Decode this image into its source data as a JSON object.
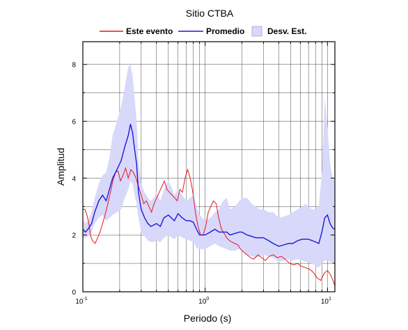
{
  "chart_data": {
    "type": "line",
    "title": "Sitio CTBA",
    "xlabel": "Periodo (s)",
    "ylabel": "Amplitud",
    "xscale": "log",
    "xlim": [
      0.1,
      11.5
    ],
    "ylim": [
      0,
      8.8
    ],
    "grid": true,
    "legend_position": "top",
    "x_ticks": [
      {
        "value": 0.1,
        "base": "10",
        "exp": "-1"
      },
      {
        "value": 1,
        "base": "10",
        "exp": "0"
      },
      {
        "value": 10,
        "base": "10",
        "exp": "1"
      }
    ],
    "y_ticks": [
      {
        "value": 0,
        "label": "0"
      },
      {
        "value": 2,
        "label": "2"
      },
      {
        "value": 4,
        "label": "4"
      },
      {
        "value": 6,
        "label": "6"
      },
      {
        "value": 8,
        "label": "8"
      }
    ],
    "legend": {
      "event_label": "Este evento",
      "mean_label": "Promedio",
      "std_label": "Desv. Est."
    },
    "colors": {
      "event": "#e8141c",
      "mean": "#1a1ad6",
      "std_fill": "#d8d8fb",
      "grid": "#444444"
    },
    "series": [
      {
        "name": "Este evento",
        "x": [
          0.1,
          0.104,
          0.108,
          0.112,
          0.116,
          0.12,
          0.126,
          0.132,
          0.138,
          0.145,
          0.152,
          0.16,
          0.168,
          0.176,
          0.185,
          0.194,
          0.203,
          0.213,
          0.224,
          0.235,
          0.247,
          0.259,
          0.272,
          0.285,
          0.3,
          0.315,
          0.33,
          0.347,
          0.364,
          0.382,
          0.401,
          0.421,
          0.442,
          0.464,
          0.487,
          0.511,
          0.537,
          0.564,
          0.592,
          0.621,
          0.652,
          0.685,
          0.719,
          0.755,
          0.793,
          0.832,
          0.874,
          0.917,
          0.963,
          1.01,
          1.06,
          1.11,
          1.17,
          1.23,
          1.29,
          1.36,
          1.43,
          1.5,
          1.58,
          1.66,
          1.75,
          1.85,
          1.95,
          2.06,
          2.2,
          2.35,
          2.5,
          2.7,
          2.9,
          3.1,
          3.35,
          3.6,
          3.9,
          4.2,
          4.5,
          4.9,
          5.3,
          5.7,
          6.1,
          6.6,
          7.1,
          7.6,
          8.2,
          8.8,
          9.4,
          10.0,
          10.6,
          11.2,
          11.5
        ],
        "y": [
          2.9,
          2.9,
          2.7,
          2.4,
          1.95,
          1.8,
          1.7,
          1.9,
          2.1,
          2.4,
          2.7,
          3.1,
          3.5,
          3.9,
          4.2,
          4.25,
          3.9,
          4.1,
          4.35,
          4.0,
          4.3,
          4.2,
          4.0,
          3.7,
          3.4,
          3.1,
          3.2,
          3.0,
          2.8,
          3.1,
          3.3,
          3.5,
          3.7,
          3.9,
          3.6,
          3.5,
          3.4,
          3.3,
          3.2,
          3.6,
          3.5,
          4.0,
          4.3,
          4.0,
          3.5,
          2.8,
          2.3,
          2.0,
          2.0,
          2.3,
          2.8,
          3.0,
          3.2,
          3.1,
          2.6,
          2.2,
          2.05,
          1.9,
          1.8,
          1.75,
          1.7,
          1.65,
          1.5,
          1.4,
          1.3,
          1.2,
          1.15,
          1.3,
          1.2,
          1.1,
          1.25,
          1.3,
          1.2,
          1.25,
          1.15,
          1.0,
          0.95,
          1.0,
          0.9,
          0.85,
          0.8,
          0.7,
          0.5,
          0.4,
          0.65,
          0.75,
          0.6,
          0.35,
          0.2
        ]
      },
      {
        "name": "Promedio",
        "x": [
          0.1,
          0.105,
          0.11,
          0.118,
          0.125,
          0.135,
          0.145,
          0.155,
          0.165,
          0.175,
          0.19,
          0.205,
          0.22,
          0.235,
          0.245,
          0.255,
          0.265,
          0.275,
          0.285,
          0.3,
          0.32,
          0.34,
          0.36,
          0.38,
          0.4,
          0.43,
          0.46,
          0.5,
          0.53,
          0.56,
          0.6,
          0.65,
          0.7,
          0.75,
          0.8,
          0.85,
          0.9,
          0.95,
          1.0,
          1.1,
          1.2,
          1.3,
          1.4,
          1.5,
          1.6,
          1.75,
          1.9,
          2.0,
          2.2,
          2.4,
          2.6,
          2.8,
          3.0,
          3.3,
          3.6,
          4.0,
          4.4,
          4.8,
          5.2,
          5.7,
          6.2,
          6.6,
          7.0,
          7.5,
          8.0,
          8.5,
          9.0,
          9.5,
          10.0,
          10.5,
          11.0,
          11.5
        ],
        "y": [
          2.2,
          2.1,
          2.2,
          2.4,
          2.8,
          3.2,
          3.4,
          3.2,
          3.6,
          4.0,
          4.3,
          4.6,
          5.1,
          5.5,
          5.9,
          5.6,
          5.0,
          4.5,
          3.5,
          2.9,
          2.6,
          2.4,
          2.3,
          2.35,
          2.4,
          2.3,
          2.6,
          2.7,
          2.6,
          2.5,
          2.75,
          2.6,
          2.5,
          2.5,
          2.45,
          2.2,
          2.0,
          2.0,
          2.0,
          2.1,
          2.2,
          2.1,
          2.1,
          2.1,
          2.0,
          2.05,
          2.1,
          2.1,
          2.0,
          1.95,
          1.9,
          1.9,
          1.9,
          1.8,
          1.7,
          1.6,
          1.65,
          1.7,
          1.7,
          1.8,
          1.85,
          1.85,
          1.85,
          1.8,
          1.75,
          1.7,
          2.1,
          2.6,
          2.7,
          2.4,
          2.25,
          2.2
        ]
      }
    ],
    "std_band": {
      "name": "Desv. Est.",
      "x": [
        0.1,
        0.105,
        0.11,
        0.118,
        0.125,
        0.135,
        0.145,
        0.155,
        0.165,
        0.175,
        0.19,
        0.205,
        0.22,
        0.235,
        0.245,
        0.255,
        0.265,
        0.275,
        0.285,
        0.3,
        0.32,
        0.34,
        0.36,
        0.38,
        0.4,
        0.43,
        0.46,
        0.5,
        0.53,
        0.56,
        0.6,
        0.65,
        0.7,
        0.75,
        0.8,
        0.85,
        0.9,
        0.95,
        1.0,
        1.1,
        1.2,
        1.3,
        1.4,
        1.5,
        1.6,
        1.75,
        1.9,
        2.0,
        2.2,
        2.4,
        2.6,
        2.8,
        3.0,
        3.3,
        3.6,
        4.0,
        4.4,
        4.8,
        5.2,
        5.7,
        6.2,
        6.6,
        7.0,
        7.5,
        8.0,
        8.5,
        9.0,
        9.5,
        10.0,
        10.5,
        11.0,
        11.5
      ],
      "upper": [
        2.5,
        2.4,
        2.5,
        2.8,
        3.3,
        3.8,
        4.1,
        4.2,
        4.7,
        5.5,
        6.0,
        6.5,
        7.2,
        7.9,
        8.0,
        7.6,
        6.8,
        6.0,
        4.6,
        3.8,
        3.5,
        3.3,
        3.2,
        3.3,
        3.5,
        3.2,
        3.6,
        3.9,
        3.7,
        3.4,
        3.6,
        3.4,
        3.2,
        3.3,
        3.4,
        3.0,
        2.7,
        2.6,
        2.5,
        2.6,
        2.8,
        2.9,
        3.2,
        3.3,
        2.9,
        3.0,
        3.2,
        3.3,
        3.3,
        3.1,
        3.0,
        2.9,
        2.9,
        2.8,
        2.8,
        2.6,
        2.65,
        2.7,
        2.8,
        2.9,
        3.0,
        3.1,
        3.0,
        2.9,
        2.9,
        3.0,
        4.2,
        6.8,
        5.8,
        4.5,
        4.0,
        3.9
      ],
      "lower": [
        1.9,
        1.9,
        1.95,
        2.1,
        2.4,
        2.6,
        2.7,
        2.5,
        2.6,
        2.7,
        2.8,
        2.9,
        3.3,
        3.6,
        3.9,
        3.8,
        3.4,
        3.1,
        2.6,
        2.1,
        1.95,
        1.8,
        1.75,
        1.75,
        1.8,
        1.75,
        1.9,
        2.0,
        1.9,
        1.85,
        2.0,
        1.9,
        1.85,
        1.8,
        1.75,
        1.55,
        1.5,
        1.5,
        1.5,
        1.6,
        1.7,
        1.6,
        1.55,
        1.5,
        1.45,
        1.45,
        1.5,
        1.45,
        1.3,
        1.25,
        1.2,
        1.25,
        1.3,
        1.25,
        1.2,
        1.05,
        1.1,
        1.15,
        1.1,
        1.15,
        1.1,
        1.05,
        1.05,
        1.0,
        0.9,
        0.85,
        1.0,
        1.1,
        1.1,
        1.05,
        1.0,
        1.0
      ]
    }
  }
}
